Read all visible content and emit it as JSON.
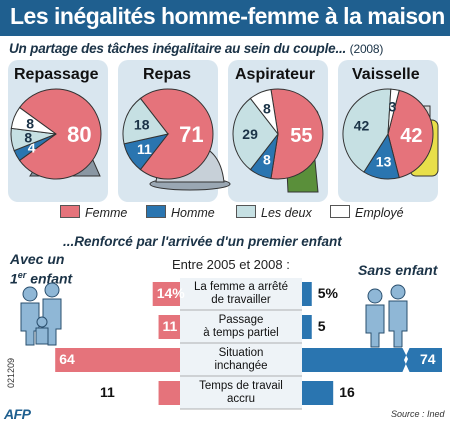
{
  "title": "Les inégalités homme-femme à la maison",
  "subtitle": "Un partage des tâches inégalitaire au sein du couple...",
  "subtitle_year": "(2008)",
  "colors": {
    "femme": "#e5737b",
    "homme": "#2a75b0",
    "deux": "#c6e0e3",
    "employe": "#ffffff",
    "title_bg": "#1f5f8f",
    "panel_bg": "#d9e6ef"
  },
  "legend": [
    "Femme",
    "Homme",
    "Les deux",
    "Employé"
  ],
  "section2": {
    "title": "...Renforcé par l'arrivée d'un premier enfant",
    "period": "Entre 2005 et 2008 :",
    "left_group_line1": "Avec un",
    "left_group_line2": "1",
    "left_group_sup": "er",
    "left_group_line3": "enfant",
    "right_group": "Sans enfant"
  },
  "source": "Source : Ined",
  "agency": "AFP",
  "code": "021209",
  "chart_data": [
    {
      "type": "pie",
      "title": "Repassage",
      "categories": [
        "Femme",
        "Homme",
        "Les deux",
        "Employé"
      ],
      "values": [
        80,
        4,
        8,
        8
      ],
      "labels": [
        "80",
        "4",
        "8",
        "8"
      ]
    },
    {
      "type": "pie",
      "title": "Repas",
      "categories": [
        "Femme",
        "Homme",
        "Les deux",
        "Employé"
      ],
      "values": [
        71,
        11,
        18,
        0
      ],
      "labels": [
        "71",
        "11",
        "18",
        ""
      ]
    },
    {
      "type": "pie",
      "title": "Aspirateur",
      "categories": [
        "Femme",
        "Homme",
        "Les deux",
        "Employé"
      ],
      "values": [
        55,
        8,
        29,
        8
      ],
      "labels": [
        "55",
        "8",
        "29",
        "8"
      ]
    },
    {
      "type": "pie",
      "title": "Vaisselle",
      "categories": [
        "Femme",
        "Homme",
        "Les deux",
        "Employé"
      ],
      "values": [
        42,
        13,
        42,
        3
      ],
      "labels": [
        "42",
        "13",
        "42",
        "3"
      ]
    },
    {
      "type": "bar",
      "orientation": "diverging",
      "categories": [
        "La femme a arrêté de travailler",
        "Passage à temps partiel",
        "Situation inchangée",
        "Temps de travail accru"
      ],
      "category_lines": [
        [
          "La femme a arrêté",
          "de travailler"
        ],
        [
          "Passage",
          "à temps partiel"
        ],
        [
          "Situation",
          "inchangée"
        ],
        [
          "Temps de travail",
          "accru"
        ]
      ],
      "series": [
        {
          "name": "Avec un 1er enfant",
          "values": [
            14,
            11,
            64,
            11
          ],
          "labels": [
            "14%",
            "11",
            "64",
            "11"
          ]
        },
        {
          "name": "Sans enfant",
          "values": [
            5,
            5,
            74,
            16
          ],
          "labels": [
            "5%",
            "5",
            "74",
            "16"
          ]
        }
      ]
    }
  ]
}
